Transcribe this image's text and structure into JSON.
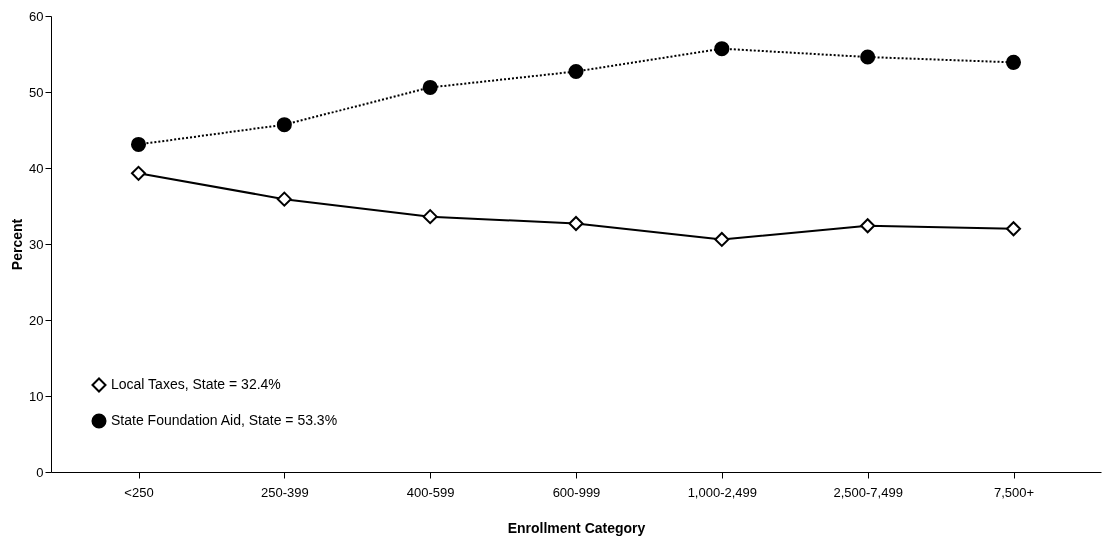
{
  "chart_data": {
    "type": "line",
    "xlabel": "Enrollment Category",
    "ylabel": "Percent",
    "categories": [
      "<250",
      "250-399",
      "400-599",
      "600-999",
      "1,000-2,499",
      "2,500-7,499",
      "7,500+"
    ],
    "series": [
      {
        "name": "Local Taxes, State = 32.4%",
        "color": "#000000",
        "marker": "diamond",
        "line_style": "solid",
        "values": [
          39.3,
          35.9,
          33.6,
          32.7,
          30.6,
          32.4,
          32.0
        ]
      },
      {
        "name": "State Foundation Aid, State = 53.3%",
        "color": "#000000",
        "marker": "circle",
        "line_style": "dotted",
        "values": [
          43.1,
          45.7,
          50.6,
          52.7,
          55.7,
          54.6,
          53.9
        ]
      }
    ],
    "ylim": [
      0,
      60
    ],
    "yticks": [
      0,
      10,
      20,
      30,
      40,
      50,
      60
    ],
    "grid": false,
    "legend": "bottom left"
  }
}
